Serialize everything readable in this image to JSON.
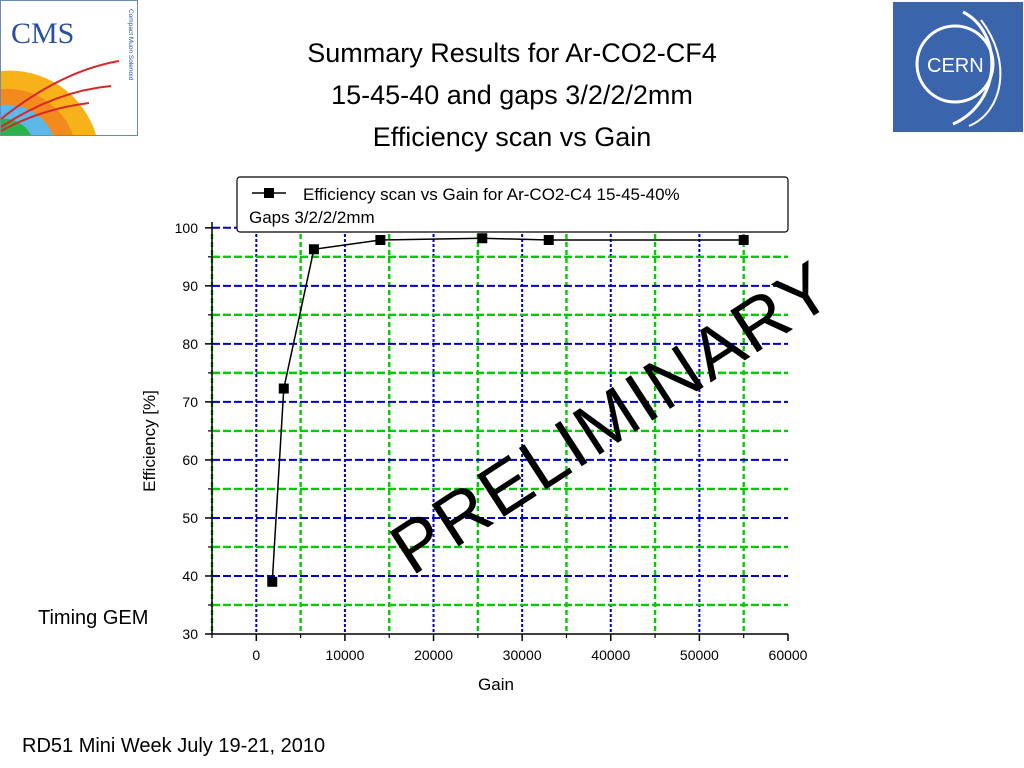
{
  "logos": {
    "cms_text": "CMS",
    "cms_subtext": "Compact Muon Solenoid",
    "cern_text": "CERN"
  },
  "slide": {
    "title_lines": [
      "Summary Results for Ar-CO2-CF4",
      "15-45-40 and gaps 3/2/2/2mm",
      "Efficiency scan vs Gain"
    ],
    "footer": "RD51 Mini Week July 19-21, 2010",
    "side_label": "Timing GEM",
    "watermark": "PRELIMINARY"
  },
  "colors": {
    "grid_blue": "#0000cc",
    "grid_green": "#00cc00",
    "series": "#000000",
    "cern_blue": "#3a64ab"
  },
  "chart_data": {
    "type": "line",
    "title": "",
    "xlabel": "Gain",
    "ylabel": "Efficiency [%]",
    "xlim": [
      -5000,
      60000
    ],
    "ylim": [
      30,
      101
    ],
    "x_ticks": [
      0,
      10000,
      20000,
      30000,
      40000,
      50000,
      60000
    ],
    "y_ticks": [
      30,
      40,
      50,
      60,
      70,
      80,
      90,
      100
    ],
    "grid": true,
    "legend_position": "top",
    "legend_text": [
      "Efficiency scan vs Gain for Ar-CO2-C4 15-45-40%",
      "Gaps 3/2/2/2mm"
    ],
    "series": [
      {
        "name": "Efficiency scan vs Gain for Ar-CO2-C4 15-45-40% Gaps 3/2/2/2mm",
        "x": [
          1800,
          3100,
          6500,
          14000,
          25500,
          33000,
          55000
        ],
        "y": [
          39,
          72.3,
          96.3,
          97.9,
          98.2,
          97.9,
          97.9
        ]
      }
    ]
  }
}
